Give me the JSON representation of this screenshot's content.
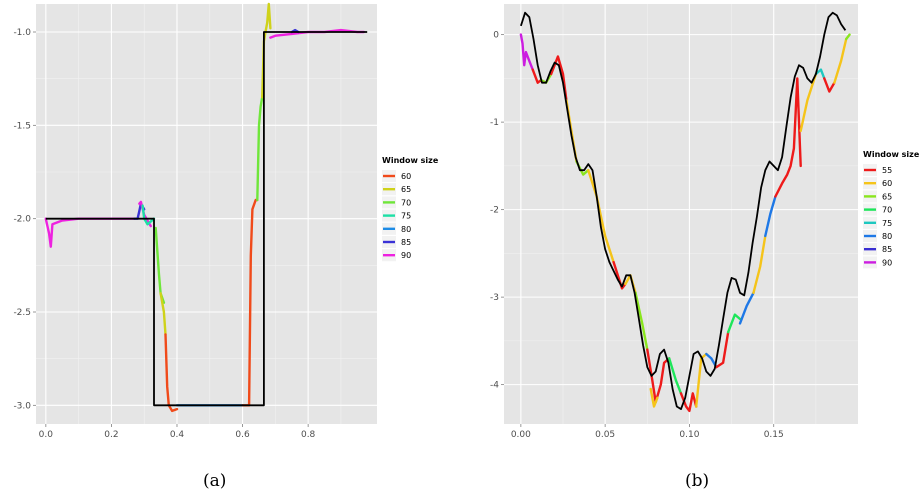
{
  "chart_data": [
    {
      "type": "line",
      "caption": "(a)",
      "xlim": [
        -0.03,
        1.01
      ],
      "ylim": [
        -3.1,
        -0.85
      ],
      "x_ticks": [
        0.0,
        0.2,
        0.4,
        0.6,
        0.8
      ],
      "x_tick_labels": [
        "0.0",
        "0.2",
        "0.4",
        "0.6",
        "0.8"
      ],
      "y_ticks": [
        -1.0,
        -1.5,
        -2.0,
        -2.5,
        -3.0
      ],
      "y_tick_labels": [
        "-1.0",
        "-1.5",
        "-2.0",
        "-2.5",
        "-3.0"
      ],
      "grid": true,
      "legend": {
        "title": "Window size",
        "placement": "right",
        "entries": [
          {
            "label": "60",
            "color": "#f04a1a"
          },
          {
            "label": "65",
            "color": "#cfd21a"
          },
          {
            "label": "70",
            "color": "#6fe63a"
          },
          {
            "label": "75",
            "color": "#1ee0a6"
          },
          {
            "label": "80",
            "color": "#1e8ce6"
          },
          {
            "label": "85",
            "color": "#3a32d6"
          },
          {
            "label": "90",
            "color": "#ee22e0"
          }
        ]
      },
      "true_signal": {
        "color": "#000000",
        "x": [
          0.0,
          0.33,
          0.33,
          0.665,
          0.665,
          0.98
        ],
        "y": [
          -2.0,
          -2.0,
          -3.0,
          -3.0,
          -1.0,
          -1.0
        ]
      },
      "series": [
        {
          "window": "90",
          "color": "#ee22e0",
          "x": [
            0.0,
            0.01,
            0.015,
            0.02,
            0.05,
            0.1,
            0.15,
            0.2,
            0.25,
            0.27
          ],
          "y": [
            -2.0,
            -2.08,
            -2.15,
            -2.03,
            -2.01,
            -2.0,
            -2.0,
            -2.0,
            -2.0,
            -2.0
          ]
        },
        {
          "window": "85",
          "color": "#3a32d6",
          "x": [
            0.27,
            0.28,
            0.285,
            0.29,
            0.3
          ],
          "y": [
            -2.0,
            -2.0,
            -1.96,
            -1.92,
            -1.95
          ]
        },
        {
          "window": "90",
          "color": "#ee22e0",
          "x": [
            0.285,
            0.29,
            0.3,
            0.32
          ],
          "y": [
            -1.92,
            -1.91,
            -1.98,
            -2.04
          ]
        },
        {
          "window": "75",
          "color": "#1ee0a6",
          "x": [
            0.295,
            0.3,
            0.31,
            0.33
          ],
          "y": [
            -1.93,
            -2.0,
            -2.03,
            -2.0
          ]
        },
        {
          "window": "70",
          "color": "#6fe63a",
          "x": [
            0.335,
            0.345,
            0.35,
            0.36
          ],
          "y": [
            -2.05,
            -2.3,
            -2.4,
            -2.45
          ]
        },
        {
          "window": "65",
          "color": "#cfd21a",
          "x": [
            0.35,
            0.36,
            0.365
          ],
          "y": [
            -2.4,
            -2.5,
            -2.62
          ]
        },
        {
          "window": "60",
          "color": "#f04a1a",
          "x": [
            0.365,
            0.37,
            0.375,
            0.385,
            0.4
          ],
          "y": [
            -2.62,
            -2.9,
            -3.0,
            -3.03,
            -3.02
          ]
        },
        {
          "window": "80",
          "color": "#1e8ce6",
          "x": [
            0.4,
            0.45,
            0.5,
            0.55,
            0.6
          ],
          "y": [
            -3.0,
            -3.0,
            -3.0,
            -3.0,
            -3.0
          ]
        },
        {
          "window": "60",
          "color": "#f04a1a",
          "x": [
            0.6,
            0.62,
            0.625,
            0.63,
            0.64,
            0.645
          ],
          "y": [
            -3.0,
            -3.0,
            -2.2,
            -1.95,
            -1.9,
            -1.9
          ]
        },
        {
          "window": "70",
          "color": "#6fe63a",
          "x": [
            0.645,
            0.65,
            0.655,
            0.66
          ],
          "y": [
            -1.9,
            -1.5,
            -1.4,
            -1.35
          ]
        },
        {
          "window": "65",
          "color": "#cfd21a",
          "x": [
            0.66,
            0.665,
            0.67,
            0.675,
            0.68,
            0.685
          ],
          "y": [
            -1.35,
            -1.05,
            -1.0,
            -0.95,
            -0.85,
            -0.98
          ]
        },
        {
          "window": "90",
          "color": "#ee22e0",
          "x": [
            0.685,
            0.7,
            0.75,
            0.8,
            0.85,
            0.9,
            0.95,
            0.97
          ],
          "y": [
            -1.03,
            -1.02,
            -1.01,
            -1.0,
            -1.0,
            -0.99,
            -1.0,
            -1.0
          ]
        },
        {
          "window": "85",
          "color": "#3a32d6",
          "x": [
            0.75,
            0.76,
            0.77
          ],
          "y": [
            -1.0,
            -0.99,
            -1.0
          ]
        }
      ]
    },
    {
      "type": "line",
      "caption": "(b)",
      "xlim": [
        -0.01,
        0.2
      ],
      "ylim": [
        -4.45,
        0.35
      ],
      "x_ticks": [
        0.0,
        0.05,
        0.1,
        0.15
      ],
      "x_tick_labels": [
        "0.00",
        "0.05",
        "0.10",
        "0.15"
      ],
      "y_ticks": [
        0,
        -1,
        -2,
        -3,
        -4
      ],
      "y_tick_labels": [
        "0",
        "-1",
        "-2",
        "-3",
        "-4"
      ],
      "grid": true,
      "legend": {
        "title": "Window size",
        "placement": "right",
        "entries": [
          {
            "label": "55",
            "color": "#ee1a1a"
          },
          {
            "label": "60",
            "color": "#f5c41a"
          },
          {
            "label": "65",
            "color": "#8ae61e"
          },
          {
            "label": "70",
            "color": "#1ee65a"
          },
          {
            "label": "75",
            "color": "#1ec8c0"
          },
          {
            "label": "80",
            "color": "#1e78e6"
          },
          {
            "label": "85",
            "color": "#3a2ed2"
          },
          {
            "label": "90",
            "color": "#cc1ee0"
          }
        ]
      },
      "true_signal": {
        "color": "#000000",
        "x": [
          0.0,
          0.0025,
          0.005,
          0.0075,
          0.01,
          0.0125,
          0.015,
          0.0175,
          0.02,
          0.0225,
          0.025,
          0.0275,
          0.03,
          0.0325,
          0.035,
          0.0375,
          0.04,
          0.0425,
          0.045,
          0.0475,
          0.05,
          0.0525,
          0.055,
          0.0575,
          0.06,
          0.0625,
          0.065,
          0.0675,
          0.07,
          0.0725,
          0.075,
          0.0775,
          0.08,
          0.0825,
          0.085,
          0.0875,
          0.09,
          0.0925,
          0.095,
          0.0975,
          0.1,
          0.1025,
          0.105,
          0.1075,
          0.11,
          0.1125,
          0.115,
          0.1175,
          0.12,
          0.1225,
          0.125,
          0.1275,
          0.13,
          0.1325,
          0.135,
          0.1375,
          0.14,
          0.1425,
          0.145,
          0.1475,
          0.15,
          0.1525,
          0.155,
          0.1575,
          0.16,
          0.1625,
          0.165,
          0.1675,
          0.17,
          0.1725,
          0.175,
          0.1775,
          0.18,
          0.1825,
          0.185,
          0.1875,
          0.19,
          0.1925
        ],
        "y": [
          0.1,
          0.25,
          0.2,
          -0.05,
          -0.35,
          -0.55,
          -0.55,
          -0.42,
          -0.32,
          -0.35,
          -0.55,
          -0.85,
          -1.15,
          -1.4,
          -1.55,
          -1.55,
          -1.48,
          -1.55,
          -1.85,
          -2.2,
          -2.45,
          -2.6,
          -2.7,
          -2.8,
          -2.88,
          -2.75,
          -2.75,
          -2.95,
          -3.25,
          -3.55,
          -3.8,
          -3.9,
          -3.85,
          -3.65,
          -3.6,
          -3.75,
          -4.05,
          -4.25,
          -4.28,
          -4.15,
          -3.9,
          -3.65,
          -3.62,
          -3.7,
          -3.85,
          -3.9,
          -3.82,
          -3.55,
          -3.25,
          -2.95,
          -2.78,
          -2.8,
          -2.95,
          -2.98,
          -2.72,
          -2.38,
          -2.08,
          -1.75,
          -1.55,
          -1.45,
          -1.5,
          -1.55,
          -1.4,
          -1.05,
          -0.72,
          -0.48,
          -0.35,
          -0.38,
          -0.5,
          -0.55,
          -0.45,
          -0.25,
          0.0,
          0.2,
          0.25,
          0.22,
          0.12,
          0.05
        ]
      },
      "series": [
        {
          "window": "90",
          "color": "#cc1ee0",
          "x": [
            0.0,
            0.001,
            0.002,
            0.003,
            0.005,
            0.007
          ],
          "y": [
            0.0,
            -0.1,
            -0.35,
            -0.2,
            -0.3,
            -0.4
          ]
        },
        {
          "window": "55",
          "color": "#ee1a1a",
          "x": [
            0.007,
            0.01,
            0.012
          ],
          "y": [
            -0.4,
            -0.55,
            -0.52
          ]
        },
        {
          "window": "65",
          "color": "#8ae61e",
          "x": [
            0.012,
            0.015,
            0.018
          ],
          "y": [
            -0.52,
            -0.55,
            -0.45
          ]
        },
        {
          "window": "55",
          "color": "#ee1a1a",
          "x": [
            0.018,
            0.02,
            0.022,
            0.025,
            0.027
          ],
          "y": [
            -0.45,
            -0.35,
            -0.25,
            -0.45,
            -0.75
          ]
        },
        {
          "window": "60",
          "color": "#f5c41a",
          "x": [
            0.027,
            0.03,
            0.033
          ],
          "y": [
            -0.75,
            -1.1,
            -1.45
          ]
        },
        {
          "window": "65",
          "color": "#8ae61e",
          "x": [
            0.033,
            0.037,
            0.04
          ],
          "y": [
            -1.45,
            -1.6,
            -1.55
          ]
        },
        {
          "window": "60",
          "color": "#f5c41a",
          "x": [
            0.04,
            0.045,
            0.05,
            0.055
          ],
          "y": [
            -1.55,
            -1.85,
            -2.3,
            -2.6
          ]
        },
        {
          "window": "55",
          "color": "#ee1a1a",
          "x": [
            0.055,
            0.06,
            0.062
          ],
          "y": [
            -2.6,
            -2.9,
            -2.85
          ]
        },
        {
          "window": "60",
          "color": "#f5c41a",
          "x": [
            0.062,
            0.065,
            0.068
          ],
          "y": [
            -2.85,
            -2.75,
            -2.95
          ]
        },
        {
          "window": "65",
          "color": "#8ae61e",
          "x": [
            0.068,
            0.072,
            0.075
          ],
          "y": [
            -2.95,
            -3.3,
            -3.6
          ]
        },
        {
          "window": "55",
          "color": "#ee1a1a",
          "x": [
            0.075,
            0.078,
            0.08,
            0.083,
            0.085,
            0.088
          ],
          "y": [
            -3.6,
            -3.95,
            -4.2,
            -4.0,
            -3.75,
            -3.7
          ]
        },
        {
          "window": "60",
          "color": "#f5c41a",
          "x": [
            0.077,
            0.079,
            0.081
          ],
          "y": [
            -4.05,
            -4.25,
            -4.15
          ]
        },
        {
          "window": "70",
          "color": "#1ee65a",
          "x": [
            0.088,
            0.092,
            0.095
          ],
          "y": [
            -3.7,
            -3.95,
            -4.1
          ]
        },
        {
          "window": "55",
          "color": "#ee1a1a",
          "x": [
            0.095,
            0.098,
            0.1,
            0.102,
            0.104
          ],
          "y": [
            -4.1,
            -4.25,
            -4.3,
            -4.1,
            -4.25
          ]
        },
        {
          "window": "60",
          "color": "#f5c41a",
          "x": [
            0.104,
            0.107,
            0.11
          ],
          "y": [
            -4.25,
            -3.7,
            -3.65
          ]
        },
        {
          "window": "80",
          "color": "#1e78e6",
          "x": [
            0.11,
            0.113,
            0.116
          ],
          "y": [
            -3.65,
            -3.7,
            -3.8
          ]
        },
        {
          "window": "55",
          "color": "#ee1a1a",
          "x": [
            0.116,
            0.12,
            0.123
          ],
          "y": [
            -3.8,
            -3.75,
            -3.4
          ]
        },
        {
          "window": "70",
          "color": "#1ee65a",
          "x": [
            0.123,
            0.127,
            0.13
          ],
          "y": [
            -3.4,
            -3.2,
            -3.25
          ]
        },
        {
          "window": "80",
          "color": "#1e78e6",
          "x": [
            0.13,
            0.134,
            0.138
          ],
          "y": [
            -3.3,
            -3.1,
            -2.95
          ]
        },
        {
          "window": "60",
          "color": "#f5c41a",
          "x": [
            0.138,
            0.142,
            0.145
          ],
          "y": [
            -2.95,
            -2.65,
            -2.3
          ]
        },
        {
          "window": "80",
          "color": "#1e78e6",
          "x": [
            0.145,
            0.148,
            0.151
          ],
          "y": [
            -2.3,
            -2.05,
            -1.85
          ]
        },
        {
          "window": "55",
          "color": "#ee1a1a",
          "x": [
            0.151,
            0.155,
            0.158,
            0.16,
            0.162,
            0.164,
            0.166
          ],
          "y": [
            -1.85,
            -1.7,
            -1.6,
            -1.5,
            -1.3,
            -0.5,
            -1.5
          ]
        },
        {
          "window": "60",
          "color": "#f5c41a",
          "x": [
            0.166,
            0.17,
            0.175
          ],
          "y": [
            -1.1,
            -0.75,
            -0.45
          ]
        },
        {
          "window": "75",
          "color": "#1ec8c0",
          "x": [
            0.175,
            0.178,
            0.18
          ],
          "y": [
            -0.45,
            -0.4,
            -0.5
          ]
        },
        {
          "window": "55",
          "color": "#ee1a1a",
          "x": [
            0.18,
            0.183,
            0.186
          ],
          "y": [
            -0.5,
            -0.65,
            -0.55
          ]
        },
        {
          "window": "60",
          "color": "#f5c41a",
          "x": [
            0.186,
            0.19,
            0.193
          ],
          "y": [
            -0.55,
            -0.3,
            -0.05
          ]
        },
        {
          "window": "65",
          "color": "#8ae61e",
          "x": [
            0.193,
            0.195
          ],
          "y": [
            -0.05,
            0.0
          ]
        }
      ]
    }
  ]
}
